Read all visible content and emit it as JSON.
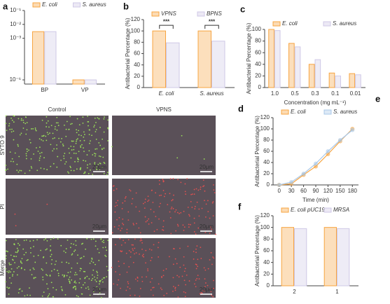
{
  "panel_labels": [
    "a",
    "b",
    "c",
    "d",
    "e",
    "f"
  ],
  "chart_data": [
    {
      "type": "bar",
      "categories": [
        "BP",
        "VP"
      ],
      "log_y": true,
      "series": [
        {
          "name": "E. coli",
          "color": "#f7a440",
          "values": [
            0.003,
            1e-06
          ]
        },
        {
          "name": "S. aureus",
          "color": "#cfc8e6",
          "values": [
            0.003,
            1e-06
          ]
        }
      ],
      "ylim": [
        5e-07,
        0.1
      ],
      "yticks": [
        {
          "value": 0.1,
          "label": "10⁻¹"
        },
        {
          "value": 0.01,
          "label": "10⁻²"
        },
        {
          "value": 0.001,
          "label": "10⁻³"
        },
        {
          "value": 1e-06,
          "label": "10⁻⁶"
        }
      ]
    },
    {
      "type": "bar",
      "categories": [
        "E. coli",
        "S. aureus"
      ],
      "y_label": "Antibacterial Percentage (%)",
      "annotations": [
        "***",
        "***"
      ],
      "series": [
        {
          "name": "VPNS",
          "color": "#f7a440",
          "values": [
            100,
            100
          ]
        },
        {
          "name": "BPNS",
          "color": "#cfc8e6",
          "values": [
            79,
            82
          ]
        }
      ],
      "ylim": [
        0,
        120
      ],
      "yticks": [
        0,
        20,
        40,
        60,
        80,
        100,
        120
      ]
    },
    {
      "type": "bar",
      "categories": [
        "1.0",
        "0.5",
        "0.3",
        "0.1",
        "0.01"
      ],
      "x_label": "Concentration (mg mL⁻¹)",
      "y_label": "Antibacterial Percentage (%)",
      "series": [
        {
          "name": "E. coli",
          "color": "#f7a440",
          "values": [
            100,
            76,
            40,
            25,
            24
          ]
        },
        {
          "name": "S. aureus",
          "color": "#cfc8e6",
          "values": [
            98,
            70,
            48,
            20,
            22
          ]
        }
      ],
      "ylim": [
        0,
        100
      ],
      "yticks": [
        0,
        20,
        40,
        60,
        80,
        100
      ]
    },
    {
      "type": "line",
      "x": [
        0,
        30,
        60,
        90,
        120,
        150,
        180
      ],
      "x_label": "Time (min)",
      "y_label": "Antibacterial Percentage (%)",
      "series": [
        {
          "name": "E. coli",
          "color": "#f7a440",
          "values": [
            0,
            2,
            18,
            33,
            55,
            78,
            100
          ]
        },
        {
          "name": "S. aureus",
          "color": "#a9c8e8",
          "values": [
            0,
            5,
            20,
            38,
            60,
            80,
            98
          ]
        }
      ],
      "xlim": [
        -15,
        195
      ],
      "xticks": [
        0,
        30,
        60,
        90,
        120,
        150,
        180
      ],
      "ylim": [
        0,
        120
      ],
      "yticks": [
        0,
        20,
        40,
        60,
        80,
        100,
        120
      ]
    },
    {
      "type": "bar",
      "categories": [
        "2",
        "1"
      ],
      "y_label": "Antibacterial Percentage (%)",
      "series": [
        {
          "name": "E. coli pUC19",
          "color": "#f7a440",
          "values": [
            100,
            100
          ]
        },
        {
          "name": "MRSA",
          "color": "#cfc8e6",
          "values": [
            98,
            98
          ]
        }
      ],
      "ylim": [
        0,
        120
      ],
      "yticks": [
        0,
        20,
        40,
        60,
        80,
        100,
        120
      ]
    }
  ],
  "micrographs": {
    "column_labels": [
      "Control",
      "VPNS"
    ],
    "row_labels": [
      "SYTO 9",
      "PI",
      "Merge"
    ],
    "scale_bar": "20μm"
  }
}
